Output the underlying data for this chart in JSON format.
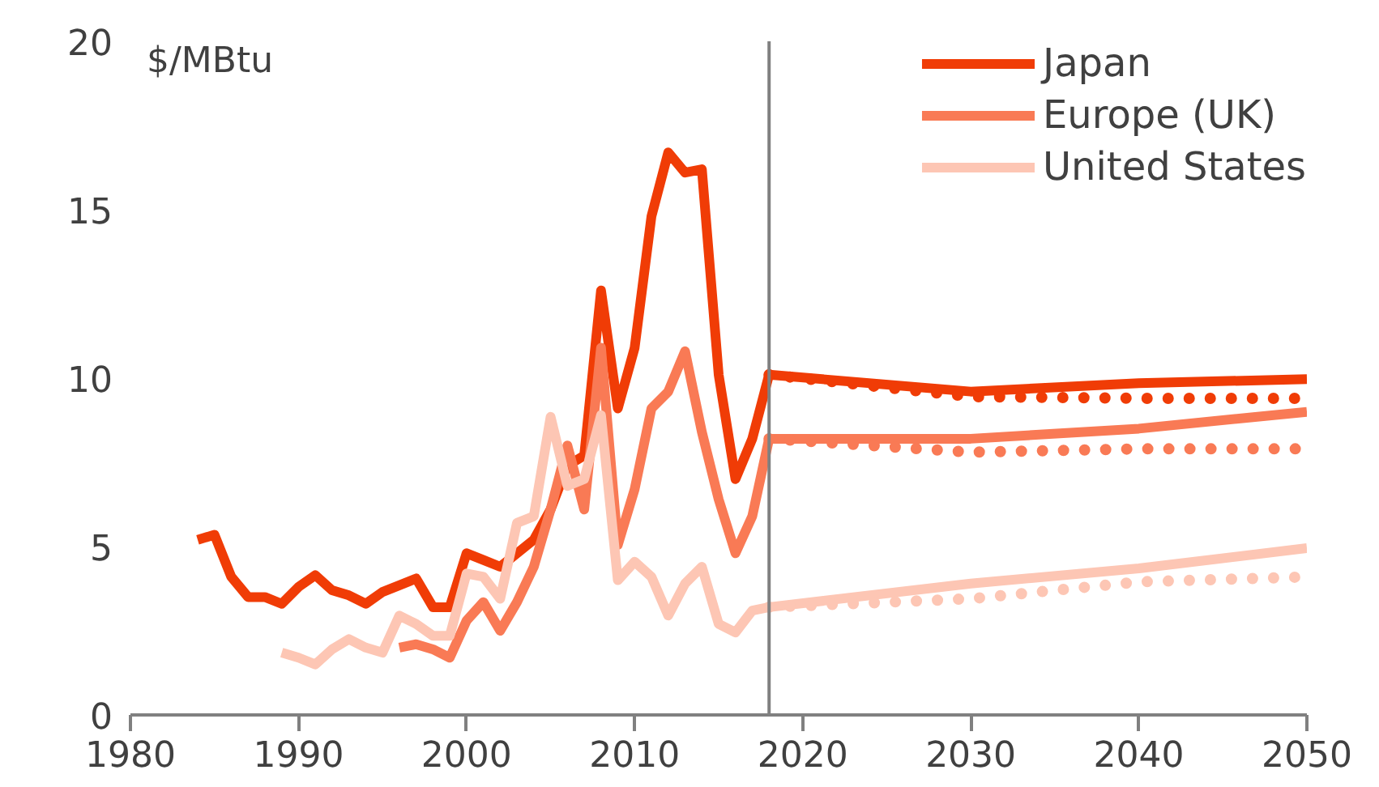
{
  "chart_data": {
    "type": "line",
    "ylabel": "$/MBtu",
    "xlim": [
      1980,
      2050
    ],
    "xticks": [
      1980,
      1990,
      2000,
      2010,
      2020,
      2030,
      2040,
      2050
    ],
    "ylim": [
      0,
      20
    ],
    "yticks": [
      0,
      5,
      10,
      15,
      20
    ],
    "grid": false,
    "legend": "top right",
    "marker": "none",
    "ref_lines": [
      {
        "axis": "x",
        "value": 2018,
        "label": null,
        "color": "#808080"
      }
    ],
    "series": [
      {
        "name": "Japan",
        "color": "#f03c06",
        "x": [
          1984,
          1985,
          1986,
          1987,
          1988,
          1989,
          1990,
          1991,
          1992,
          1993,
          1994,
          1995,
          1996,
          1997,
          1998,
          1999,
          2000,
          2001,
          2002,
          2003,
          2004,
          2005,
          2006,
          2007,
          2008,
          2009,
          2010,
          2011,
          2012,
          2013,
          2014,
          2015,
          2016,
          2017,
          2018,
          2030,
          2040,
          2050
        ],
        "values": [
          5.2,
          5.35,
          4.1,
          3.5,
          3.5,
          3.3,
          3.8,
          4.15,
          3.7,
          3.55,
          3.3,
          3.65,
          3.85,
          4.05,
          3.2,
          3.2,
          4.8,
          4.6,
          4.4,
          4.8,
          5.2,
          6.1,
          7.4,
          7.7,
          12.6,
          9.1,
          10.9,
          14.8,
          16.7,
          16.1,
          16.2,
          10.1,
          7.0,
          8.2,
          10.1,
          9.6,
          9.85,
          9.97
        ]
      },
      {
        "name": "Europe (UK)",
        "color": "#f97a55",
        "x": [
          1996,
          1997,
          1998,
          1999,
          2000,
          2001,
          2002,
          2003,
          2004,
          2005,
          2006,
          2007,
          2008,
          2009,
          2010,
          2011,
          2012,
          2013,
          2014,
          2015,
          2016,
          2017,
          2018,
          2030,
          2040,
          2050
        ],
        "values": [
          2.0,
          2.1,
          1.95,
          1.7,
          2.8,
          3.35,
          2.5,
          3.35,
          4.4,
          6.1,
          8.0,
          6.1,
          10.9,
          5.05,
          6.7,
          9.1,
          9.6,
          10.8,
          8.4,
          6.4,
          4.8,
          5.9,
          8.2,
          8.2,
          8.5,
          9.0
        ]
      },
      {
        "name": "United States",
        "color": "#fdc6b4",
        "x": [
          1989,
          1990,
          1991,
          1992,
          1993,
          1994,
          1995,
          1996,
          1997,
          1998,
          1999,
          2000,
          2001,
          2002,
          2003,
          2004,
          2005,
          2006,
          2007,
          2008,
          2009,
          2010,
          2011,
          2012,
          2013,
          2014,
          2015,
          2016,
          2017,
          2018,
          2030,
          2040,
          2050
        ],
        "values": [
          1.85,
          1.7,
          1.5,
          1.95,
          2.25,
          2.0,
          1.85,
          2.95,
          2.7,
          2.35,
          2.35,
          4.2,
          4.1,
          3.45,
          5.7,
          5.9,
          8.85,
          6.8,
          7.0,
          8.9,
          4.0,
          4.55,
          4.1,
          2.95,
          3.9,
          4.4,
          2.7,
          2.45,
          3.1,
          3.2,
          3.9,
          4.35,
          4.95
        ]
      },
      {
        "color": "#f03c06",
        "line_style": "dotted",
        "x": [
          2018,
          2030,
          2040,
          2050
        ],
        "values": [
          10.1,
          9.45,
          9.4,
          9.4
        ]
      },
      {
        "color": "#f97a55",
        "line_style": "dotted",
        "x": [
          2018,
          2030,
          2040,
          2050
        ],
        "values": [
          8.2,
          7.8,
          7.9,
          7.9
        ]
      },
      {
        "color": "#fdc6b4",
        "line_style": "dotted",
        "x": [
          2018,
          2030,
          2040,
          2050
        ],
        "values": [
          3.2,
          3.45,
          3.95,
          4.1
        ]
      }
    ]
  }
}
